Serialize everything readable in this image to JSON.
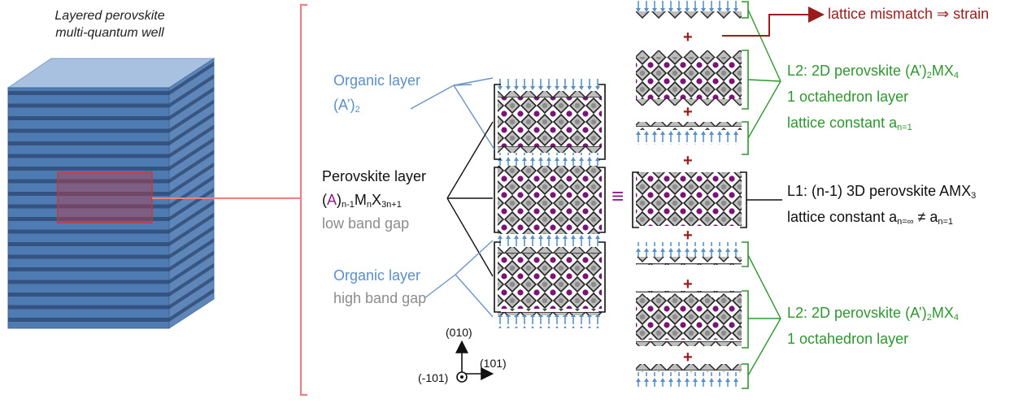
{
  "title": {
    "line1": "Layered perovskite",
    "line2": "multi-quantum well"
  },
  "organic_top": {
    "line1": "Organic layer",
    "line2_base": "(A’)",
    "line2_sub": "2"
  },
  "perovskite": {
    "line1": "Perovskite layer",
    "formula_open": "(",
    "formula_a": "A",
    "formula_close": ")",
    "sub1": "n-1",
    "m": "M",
    "sub2": "n",
    "x": "X",
    "sub3": "3n+1",
    "line3": "low band gap"
  },
  "organic_bottom": {
    "line1": "Organic layer",
    "line2": "high band gap"
  },
  "equiv_symbol": "≡",
  "axes": {
    "up": "(010)",
    "right": "(101)",
    "out": "(-101)"
  },
  "mismatch": "lattice mismatch ⇒ strain",
  "l2_top": {
    "line1_pre": "L2: 2D perovskite (A’)",
    "sub_a": "2",
    "line1_mid": "MX",
    "sub_b": "4",
    "line2": "1 octahedron layer",
    "line3_pre": "lattice constant a",
    "line3_sub": "n=1"
  },
  "l1": {
    "line1_pre": "L1: (n-1) 3D perovskite AMX",
    "line1_sub": "3",
    "line2_pre": "lattice constant a",
    "line2_sub1": "n=∞",
    "line2_mid": " ≠ a",
    "line2_sub2": "n=1"
  },
  "l2_bottom": {
    "line1_pre": "L2: 2D perovskite (A’)",
    "sub_a": "2",
    "line1_mid": "MX",
    "sub_b": "4",
    "line2": "1 octahedron layer"
  },
  "plus_sign": "+",
  "colors": {
    "organic": "#5b8fc9",
    "perovskite_label": "#111111",
    "gap_label": "#8c8c8c",
    "layer2": "#2f962f",
    "mismatch": "#9b1c1c",
    "a_site": "#8a1f8a",
    "callout": "#f07f7f",
    "stack": "#3f6fa8"
  }
}
